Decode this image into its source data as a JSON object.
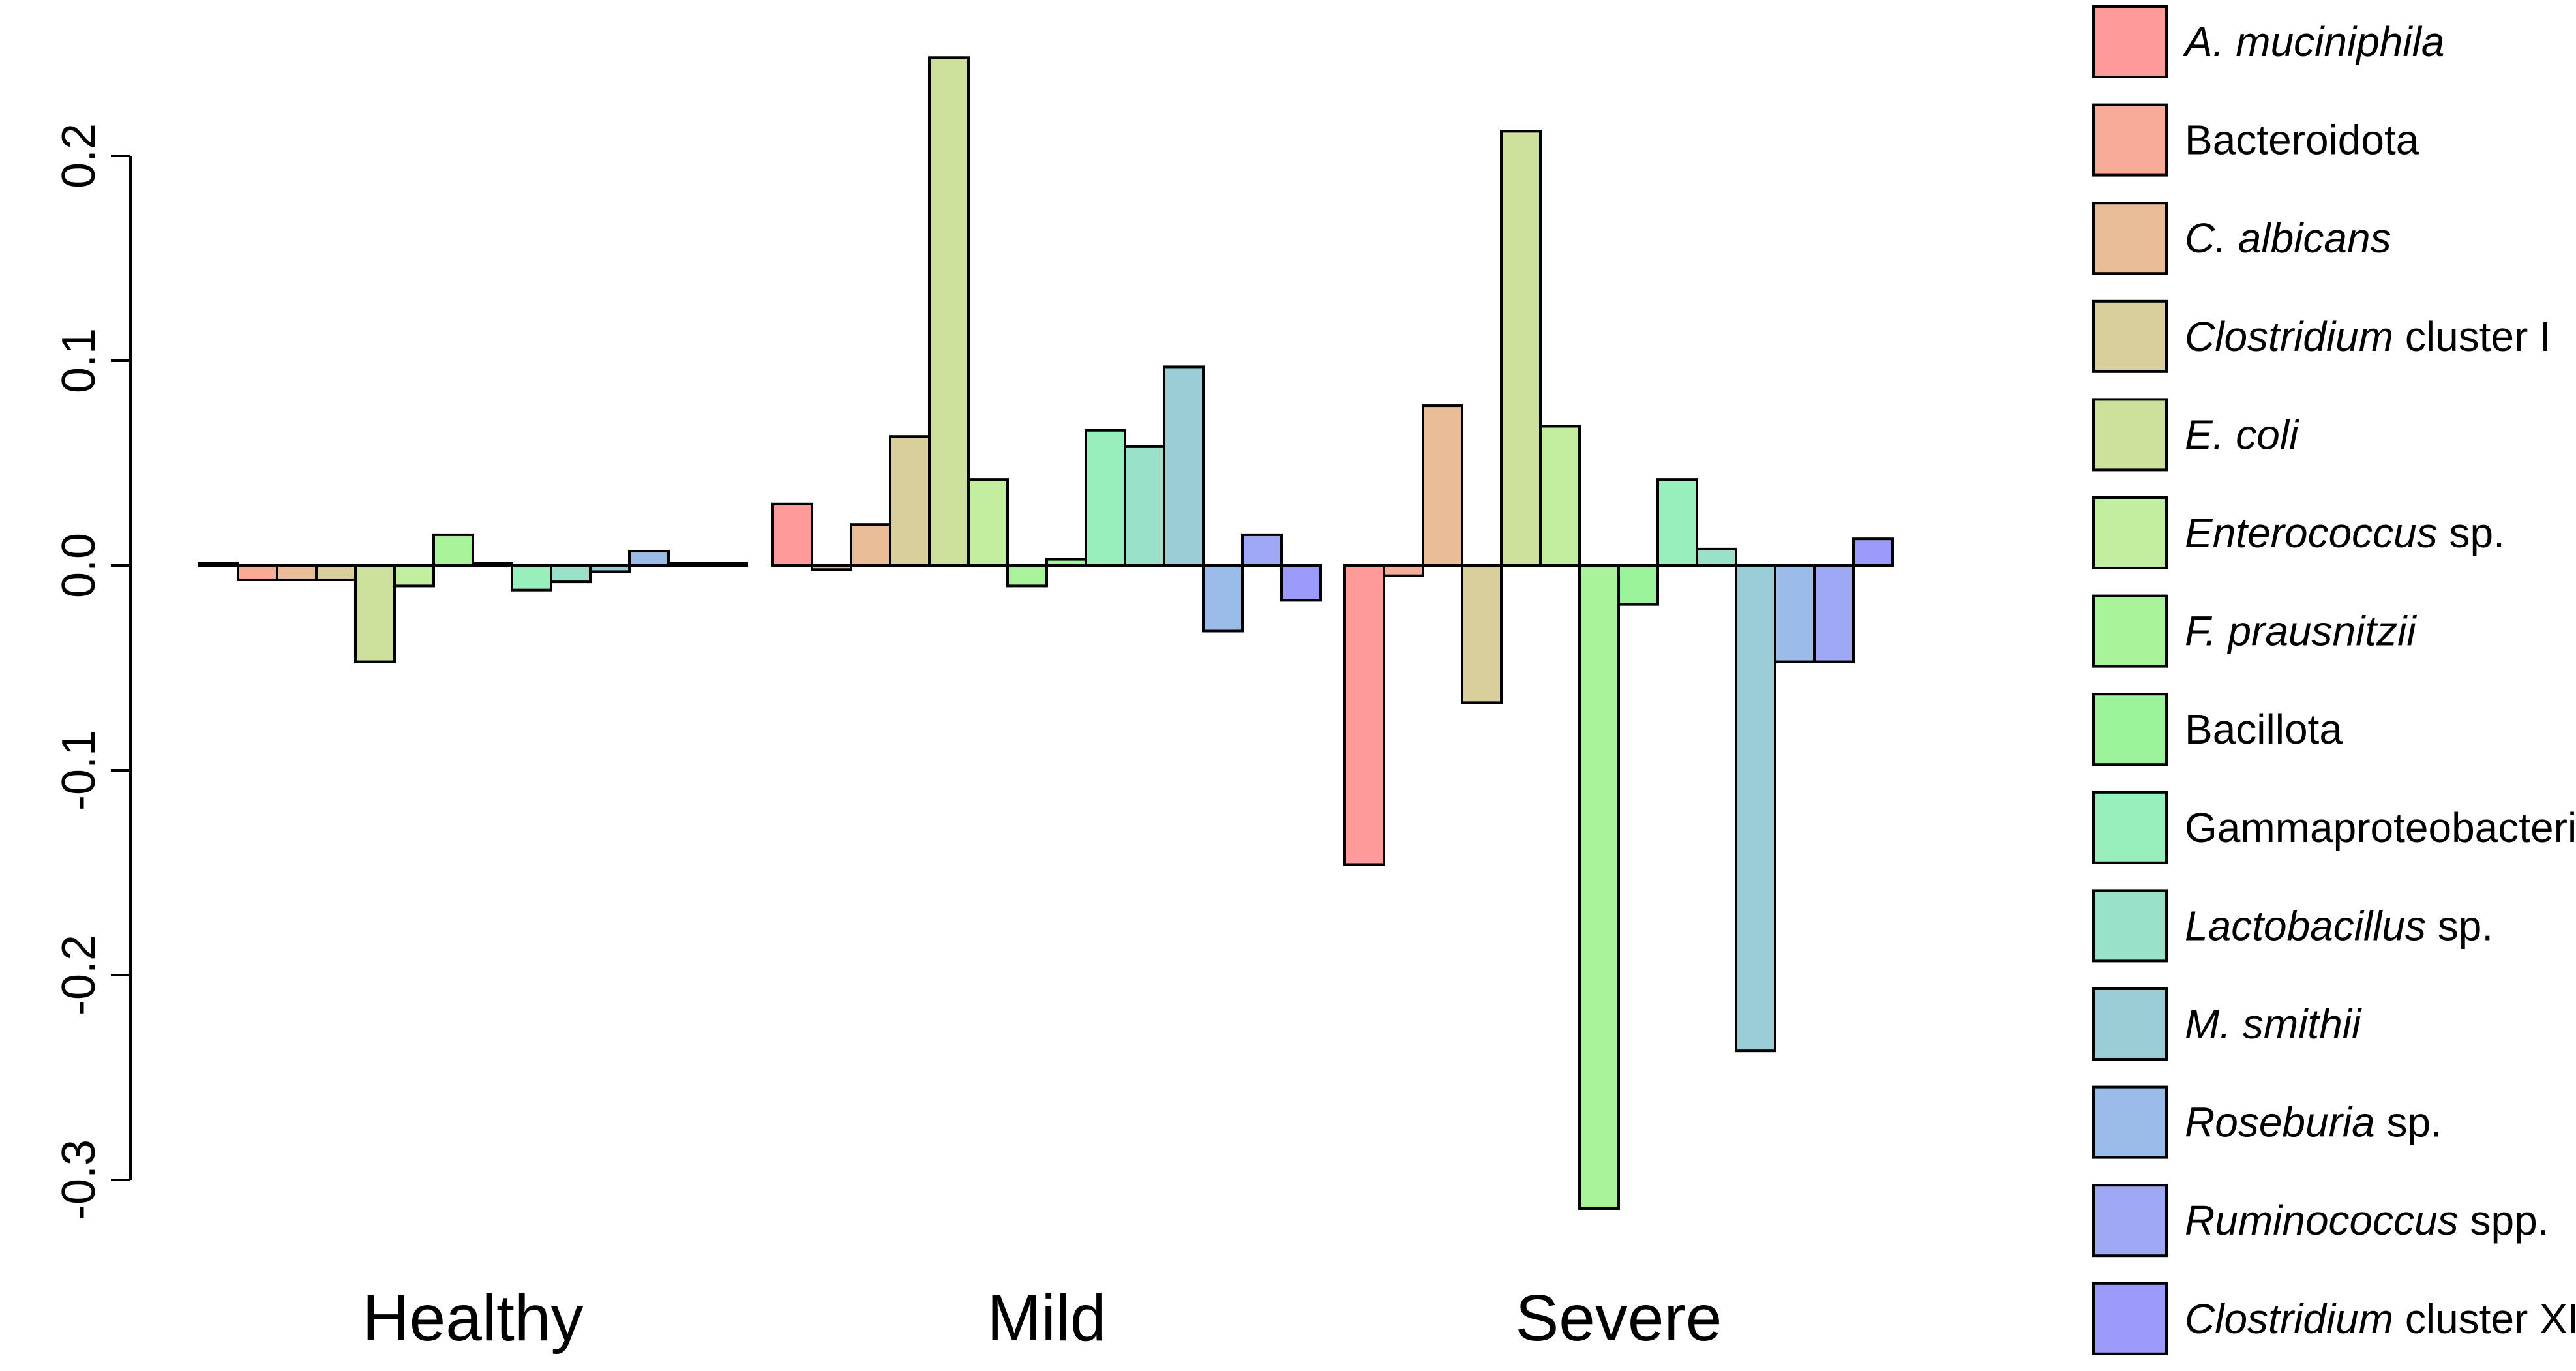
{
  "chart_data": {
    "type": "bar",
    "title": "",
    "xlabel": "",
    "ylabel": "",
    "ylim": [
      -0.3,
      0.2
    ],
    "yticks": [
      "0.2",
      "0.1",
      "0.0",
      "-0.1",
      "-0.2",
      "-0.3"
    ],
    "grid": false,
    "legend_position": "right",
    "categories": [
      "Healthy",
      "Mild",
      "Severe"
    ],
    "series": [
      {
        "name": "A. muciniphila",
        "italic_part": "A. muciniphila",
        "plain_part": "",
        "color": "#ff9a9a",
        "values": [
          0.001,
          0.03,
          -0.146
        ]
      },
      {
        "name": "Bacteroidota",
        "italic_part": "",
        "plain_part": "Bacteroidota",
        "color": "#f8ab98",
        "values": [
          -0.007,
          -0.002,
          -0.005
        ]
      },
      {
        "name": "C. albicans",
        "italic_part": "C. albicans",
        "plain_part": "",
        "color": "#e8bd98",
        "values": [
          -0.007,
          0.02,
          0.078
        ]
      },
      {
        "name": "Clostridium cluster I",
        "italic_part": "Clostridium",
        "plain_part": " cluster I",
        "color": "#d8cf9c",
        "values": [
          -0.007,
          0.063,
          -0.067
        ]
      },
      {
        "name": "E. coli",
        "italic_part": "E. coli",
        "plain_part": "",
        "color": "#cde09c",
        "values": [
          -0.047,
          0.248,
          0.212
        ]
      },
      {
        "name": "Enterococcus sp.",
        "italic_part": "Enterococcus",
        "plain_part": " sp.",
        "color": "#c2ee9e",
        "values": [
          -0.01,
          0.042,
          0.068
        ]
      },
      {
        "name": "F. prausnitzii",
        "italic_part": "F. prausnitzii",
        "plain_part": "",
        "color": "#a8f29a",
        "values": [
          0.015,
          -0.01,
          -0.314
        ]
      },
      {
        "name": "Bacillota",
        "italic_part": "",
        "plain_part": "Bacillota",
        "color": "#9af59a",
        "values": [
          0.001,
          0.003,
          -0.019
        ]
      },
      {
        "name": "Gammaproteobacteria",
        "italic_part": "",
        "plain_part": "Gammaproteobacteria",
        "color": "#99efbb",
        "values": [
          -0.012,
          0.066,
          0.042
        ]
      },
      {
        "name": "Lactobacillus sp.",
        "italic_part": "Lactobacillus",
        "plain_part": " sp.",
        "color": "#99e0c8",
        "values": [
          -0.008,
          0.058,
          0.008
        ]
      },
      {
        "name": "M. smithii",
        "italic_part": "M. smithii",
        "plain_part": "",
        "color": "#9acdd4",
        "values": [
          -0.003,
          0.097,
          -0.237
        ]
      },
      {
        "name": "Roseburia sp.",
        "italic_part": "Roseburia",
        "plain_part": " sp.",
        "color": "#9cbce8",
        "values": [
          0.007,
          -0.032,
          -0.047
        ]
      },
      {
        "name": "Ruminococcus spp.",
        "italic_part": "Ruminococcus",
        "plain_part": " spp.",
        "color": "#9fa8f5",
        "values": [
          0.001,
          0.015,
          -0.047
        ]
      },
      {
        "name": "Clostridium cluster XIV",
        "italic_part": "Clostridium",
        "plain_part": " cluster XIV",
        "color": "#9a9af8",
        "values": [
          0.001,
          -0.017,
          0.013
        ]
      }
    ]
  }
}
